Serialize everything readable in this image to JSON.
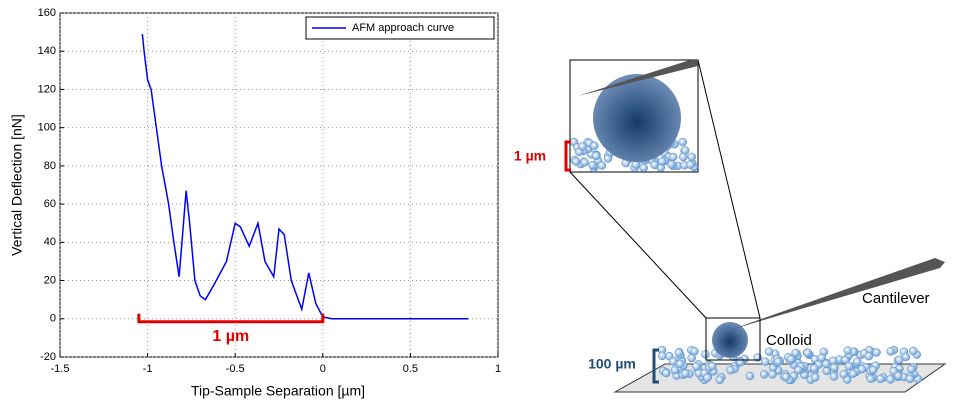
{
  "chart_data": {
    "type": "line",
    "xlabel": "Tip-Sample Separation [µm]",
    "ylabel": "Vertical Deflection [nN]",
    "series": [
      {
        "name": "AFM approach curve",
        "color": "#0000ff",
        "x": [
          -1.03,
          -1.02,
          -1.0,
          -0.98,
          -0.95,
          -0.92,
          -0.88,
          -0.85,
          -0.82,
          -0.78,
          -0.76,
          -0.73,
          -0.7,
          -0.67,
          -0.62,
          -0.55,
          -0.5,
          -0.47,
          -0.42,
          -0.37,
          -0.33,
          -0.28,
          -0.25,
          -0.22,
          -0.18,
          -0.12,
          -0.08,
          -0.04,
          0,
          0.05,
          0.3,
          0.6,
          0.83
        ],
        "values": [
          149,
          140,
          125,
          120,
          100,
          80,
          60,
          40,
          22,
          67,
          50,
          20,
          12,
          10,
          18,
          30,
          50,
          48,
          38,
          50,
          30,
          22,
          47,
          44,
          20,
          5,
          24,
          8,
          1,
          0,
          0,
          0,
          0
        ]
      }
    ],
    "xlim": [
      -1.5,
      1
    ],
    "xticks": [
      -1.5,
      -1,
      -0.5,
      0,
      0.5,
      1
    ],
    "ylim": [
      -20,
      160
    ],
    "yticks": [
      -20,
      0,
      20,
      40,
      60,
      80,
      100,
      120,
      140,
      160
    ],
    "grid": true,
    "legend": "top-right",
    "annotation": {
      "text": "1 µm",
      "x": [
        -1.05,
        0
      ],
      "y": 0,
      "color": "#e00000"
    }
  },
  "diagram": {
    "inset_scale": "1 µm",
    "base_scale": "100 µm",
    "colloid": "Colloid",
    "cantilever": "Cantilever"
  }
}
